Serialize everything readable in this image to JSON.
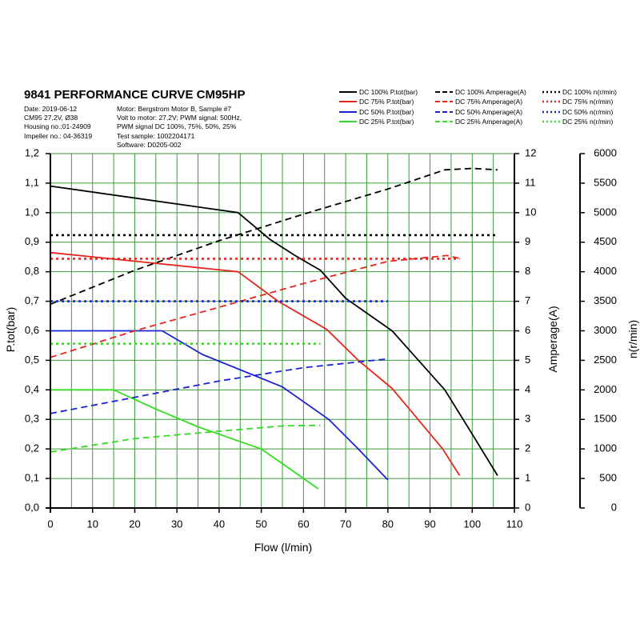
{
  "header": {
    "title": "9841 PERFORMANCE CURVE CM95HP",
    "meta_left": [
      "Date: 2019-06-12",
      "CM95 27,2V, Ø38",
      "Housing no.:01-24909",
      "Impeller no.: 04-36319"
    ],
    "meta_right": [
      "Motor: Bergstrom Motor B, Sample #7",
      "Volt to motor: 27,2V; PWM signal: 500Hz,",
      "PWM signal DC 100%, 75%, 50%, 25%",
      "Test sample: 1002204171",
      "Software: D0205-002"
    ]
  },
  "legend": [
    {
      "label": "DC 100% P.tot(bar)",
      "color": "#000000",
      "style": "solid"
    },
    {
      "label": "DC 75% P.tot(bar)",
      "color": "#e8251c",
      "style": "solid"
    },
    {
      "label": "DC 50% P.tot(bar)",
      "color": "#1c22d6",
      "style": "solid"
    },
    {
      "label": "DC 25% P.tot(bar)",
      "color": "#33dd22",
      "style": "solid"
    },
    {
      "label": "DC 100% Amperage(A)",
      "color": "#000000",
      "style": "dashed"
    },
    {
      "label": "DC 75% Amperage(A)",
      "color": "#e8251c",
      "style": "dashed"
    },
    {
      "label": "DC 50% Amperage(A)",
      "color": "#1c22d6",
      "style": "dashed"
    },
    {
      "label": "DC 25% Amperage(A)",
      "color": "#33dd22",
      "style": "dashed"
    },
    {
      "label": "DC 100% n(r/min)",
      "color": "#000000",
      "style": "dotted"
    },
    {
      "label": "DC 75% n(r/min)",
      "color": "#e8251c",
      "style": "dotted"
    },
    {
      "label": "DC 50% n(r/min)",
      "color": "#1c22d6",
      "style": "dotted"
    },
    {
      "label": "DC 25% n(r/min)",
      "color": "#33dd22",
      "style": "dotted"
    }
  ],
  "chart_data": {
    "type": "line",
    "title": "9841 PERFORMANCE CURVE CM95HP",
    "xlabel": "Flow (l/min)",
    "ylabel": "P.tot(bar)",
    "y2label": "Amperage(A)",
    "y3label": "n(r/min)",
    "xlim": [
      0,
      110
    ],
    "ylim": [
      0,
      1.2
    ],
    "y2lim": [
      0,
      12
    ],
    "y3lim": [
      0,
      6000
    ],
    "x_ticks": [
      "0",
      "10",
      "20",
      "30",
      "40",
      "50",
      "60",
      "70",
      "80",
      "90",
      "100",
      "110"
    ],
    "y_ticks": [
      "0,0",
      "0,1",
      "0,2",
      "0,3",
      "0,4",
      "0,5",
      "0,6",
      "0,7",
      "0,8",
      "0,9",
      "1,0",
      "1,1",
      "1,2"
    ],
    "y2_ticks": [
      "0",
      "1",
      "2",
      "3",
      "4",
      "5",
      "6",
      "7",
      "8",
      "9",
      "10",
      "11",
      "12"
    ],
    "y3_ticks": [
      "0",
      "500",
      "1000",
      "1500",
      "2000",
      "2500",
      "3000",
      "3500",
      "4000",
      "4500",
      "5000",
      "5500",
      "6000"
    ],
    "grid": true,
    "grid_color": "#3a9a3a",
    "legend_position": "top-right",
    "series": [
      {
        "name": "DC 100% P.tot(bar)",
        "axis": "pressure",
        "color": "#000000",
        "style": "solid",
        "points": [
          [
            0,
            1.09
          ],
          [
            44.5,
            1.0
          ],
          [
            52,
            0.91
          ],
          [
            58,
            0.855
          ],
          [
            64,
            0.805
          ],
          [
            70,
            0.71
          ],
          [
            81,
            0.6
          ],
          [
            93.5,
            0.4
          ],
          [
            100,
            0.25
          ],
          [
            106,
            0.11
          ]
        ]
      },
      {
        "name": "DC 75% P.tot(bar)",
        "axis": "pressure",
        "color": "#e8251c",
        "style": "solid",
        "points": [
          [
            0,
            0.865
          ],
          [
            44.5,
            0.8
          ],
          [
            54,
            0.7
          ],
          [
            65.5,
            0.605
          ],
          [
            73,
            0.5
          ],
          [
            81,
            0.405
          ],
          [
            93,
            0.2
          ],
          [
            97,
            0.11
          ]
        ]
      },
      {
        "name": "DC 50% P.tot(bar)",
        "axis": "pressure",
        "color": "#1c22d6",
        "style": "solid",
        "points": [
          [
            0,
            0.6
          ],
          [
            26.5,
            0.6
          ],
          [
            36,
            0.52
          ],
          [
            55,
            0.41
          ],
          [
            66,
            0.3
          ],
          [
            73,
            0.2
          ],
          [
            80,
            0.095
          ]
        ]
      },
      {
        "name": "DC 25% P.tot(bar)",
        "axis": "pressure",
        "color": "#33dd22",
        "style": "solid",
        "points": [
          [
            0,
            0.4
          ],
          [
            15,
            0.4
          ],
          [
            25,
            0.335
          ],
          [
            35,
            0.275
          ],
          [
            50,
            0.2
          ],
          [
            56,
            0.14
          ],
          [
            63.5,
            0.065
          ]
        ]
      },
      {
        "name": "DC 100% Amperage(A)",
        "axis": "amperage",
        "color": "#000000",
        "style": "dashed",
        "points": [
          [
            0,
            6.9
          ],
          [
            20,
            8.05
          ],
          [
            40,
            9.05
          ],
          [
            60,
            9.95
          ],
          [
            80,
            10.8
          ],
          [
            93.5,
            11.45
          ],
          [
            100,
            11.5
          ],
          [
            106,
            11.45
          ]
        ]
      },
      {
        "name": "DC 75% Amperage(A)",
        "axis": "amperage",
        "color": "#e8251c",
        "style": "dashed",
        "points": [
          [
            0,
            5.1
          ],
          [
            20,
            6.0
          ],
          [
            40,
            6.8
          ],
          [
            60,
            7.6
          ],
          [
            80,
            8.35
          ],
          [
            94,
            8.55
          ],
          [
            97,
            8.45
          ]
        ]
      },
      {
        "name": "DC 50% Amperage(A)",
        "axis": "amperage",
        "color": "#1c22d6",
        "style": "dashed",
        "points": [
          [
            0,
            3.2
          ],
          [
            20,
            3.75
          ],
          [
            40,
            4.3
          ],
          [
            60,
            4.75
          ],
          [
            80,
            5.05
          ]
        ]
      },
      {
        "name": "DC 25% Amperage(A)",
        "axis": "amperage",
        "color": "#33dd22",
        "style": "dashed",
        "points": [
          [
            0,
            1.9
          ],
          [
            20,
            2.35
          ],
          [
            40,
            2.6
          ],
          [
            55,
            2.78
          ],
          [
            64,
            2.8
          ]
        ]
      },
      {
        "name": "DC 100% n(r/min)",
        "axis": "speed",
        "color": "#000000",
        "style": "dotted",
        "points": [
          [
            0,
            4620
          ],
          [
            106,
            4620
          ]
        ]
      },
      {
        "name": "DC 75% n(r/min)",
        "axis": "speed",
        "color": "#e8251c",
        "style": "dotted",
        "points": [
          [
            0,
            4220
          ],
          [
            97,
            4220
          ]
        ]
      },
      {
        "name": "DC 50% n(r/min)",
        "axis": "speed",
        "color": "#1c22d6",
        "style": "dotted",
        "points": [
          [
            0,
            3500
          ],
          [
            80,
            3500
          ]
        ]
      },
      {
        "name": "DC 25% n(r/min)",
        "axis": "speed",
        "color": "#33dd22",
        "style": "dotted",
        "points": [
          [
            0,
            2780
          ],
          [
            64,
            2780
          ]
        ]
      }
    ]
  }
}
